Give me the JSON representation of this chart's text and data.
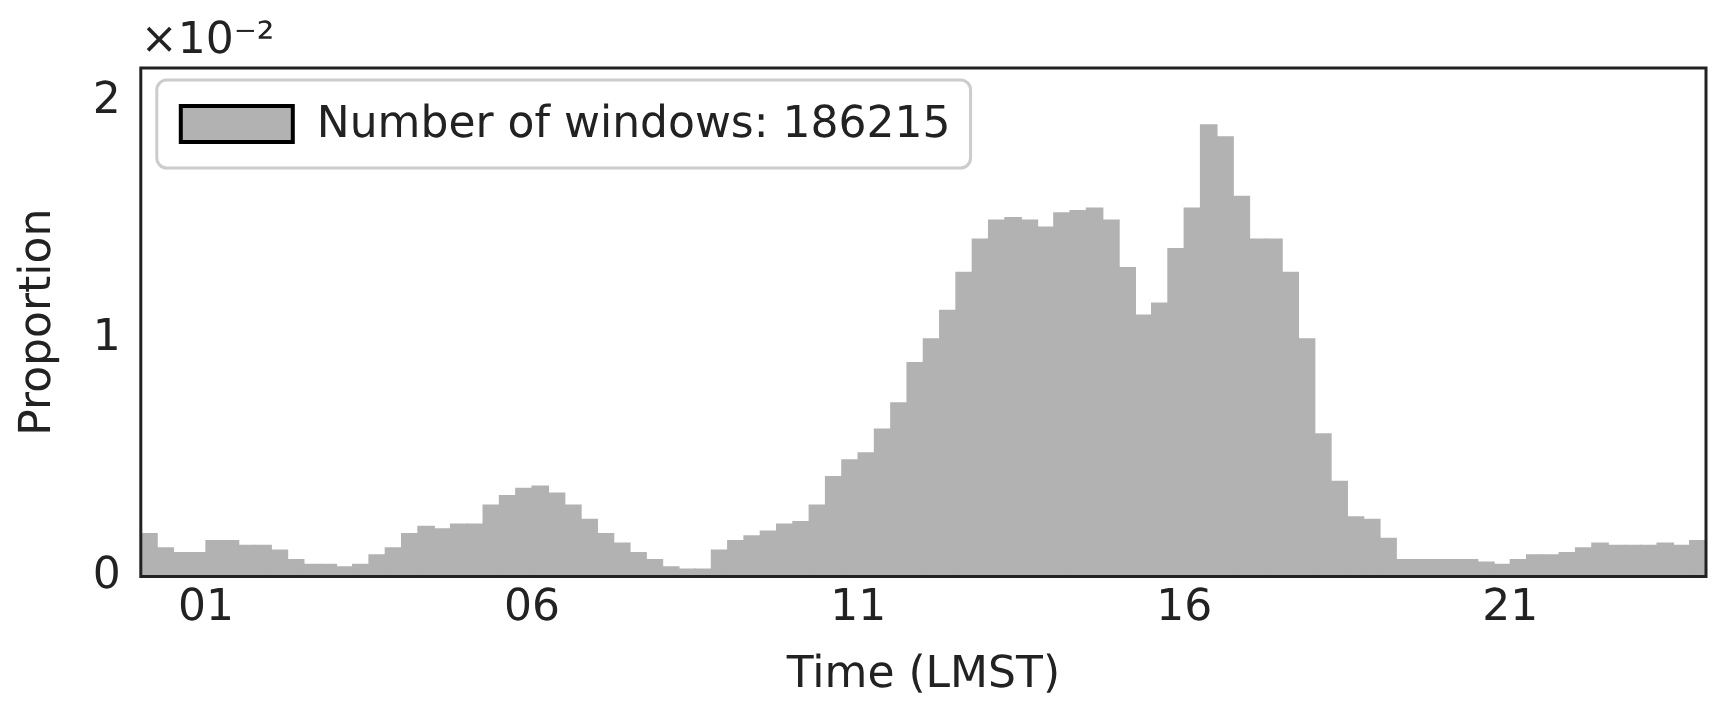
{
  "chart_data": {
    "type": "histogram",
    "xlabel": "Time (LMST)",
    "ylabel": "Proportion",
    "annotations": [
      "×10⁻²"
    ],
    "bins": [
      0,
      0.25,
      0.5,
      0.75,
      1,
      1.25,
      1.5,
      1.75,
      2,
      2.25,
      2.5,
      2.75,
      3,
      3.25,
      3.5,
      3.75,
      4,
      4.25,
      4.5,
      4.75,
      5,
      5.25,
      5.5,
      5.75,
      6,
      6.25,
      6.5,
      6.75,
      7,
      7.25,
      7.5,
      7.75,
      8,
      8.25,
      8.5,
      8.75,
      9,
      9.25,
      9.5,
      9.75,
      10,
      10.25,
      10.5,
      10.75,
      11,
      11.25,
      11.5,
      11.75,
      12,
      12.25,
      12.5,
      12.75,
      13,
      13.25,
      13.5,
      13.75,
      14,
      14.25,
      14.5,
      14.75,
      15,
      15.25,
      15.5,
      15.75,
      16,
      16.25,
      16.5,
      16.75,
      17,
      17.25,
      17.5,
      17.75,
      18,
      18.25,
      18.5,
      18.75,
      19,
      19.25,
      19.5,
      19.75,
      20,
      20.25,
      20.5,
      20.75,
      21,
      21.25,
      21.5,
      21.75,
      22,
      22.25,
      22.5,
      22.75,
      23,
      23.25,
      23.5,
      23.75,
      24
    ],
    "series": [
      {
        "name": "Number of windows: 186215",
        "color": "#b2b2b2",
        "values": [
          0.18,
          0.12,
          0.1,
          0.1,
          0.15,
          0.15,
          0.13,
          0.13,
          0.11,
          0.07,
          0.05,
          0.05,
          0.04,
          0.05,
          0.09,
          0.12,
          0.18,
          0.21,
          0.2,
          0.22,
          0.22,
          0.3,
          0.34,
          0.37,
          0.38,
          0.35,
          0.3,
          0.24,
          0.18,
          0.14,
          0.1,
          0.07,
          0.04,
          0.03,
          0.03,
          0.11,
          0.15,
          0.17,
          0.19,
          0.22,
          0.23,
          0.3,
          0.42,
          0.49,
          0.52,
          0.62,
          0.73,
          0.9,
          1.0,
          1.12,
          1.28,
          1.42,
          1.5,
          1.51,
          1.5,
          1.47,
          1.53,
          1.54,
          1.55,
          1.5,
          1.3,
          1.1,
          1.15,
          1.38,
          1.55,
          1.9,
          1.85,
          1.6,
          1.42,
          1.42,
          1.28,
          1.0,
          0.6,
          0.4,
          0.25,
          0.24,
          0.16,
          0.07,
          0.07,
          0.07,
          0.07,
          0.07,
          0.06,
          0.05,
          0.07,
          0.09,
          0.09,
          0.1,
          0.12,
          0.14,
          0.13,
          0.13,
          0.13,
          0.14,
          0.13,
          0.15
        ]
      }
    ],
    "xlim": [
      0,
      24
    ],
    "xticks": [
      {
        "value": 1,
        "label": "01"
      },
      {
        "value": 6,
        "label": "06"
      },
      {
        "value": 11,
        "label": "11"
      },
      {
        "value": 16,
        "label": "16"
      },
      {
        "value": 21,
        "label": "21"
      }
    ],
    "ylim": [
      0,
      2.14
    ],
    "yticks": [
      0,
      1,
      2
    ],
    "grid": false,
    "legend": "top left"
  }
}
